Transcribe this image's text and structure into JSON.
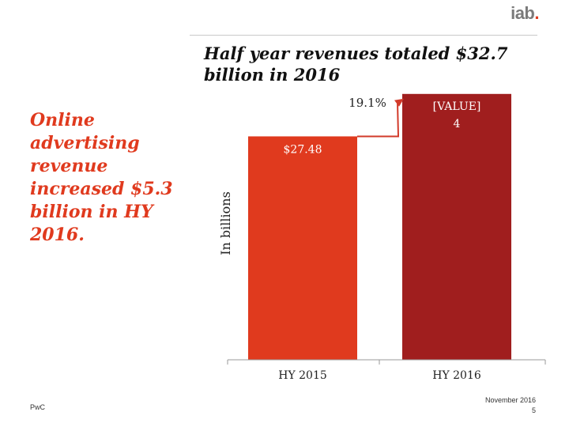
{
  "logo": {
    "text": "iab",
    "dot": "."
  },
  "title": "Half year revenues totaled $32.7 billion in 2016",
  "side_text": "Online advertising revenue increased $5.3 billion in HY 2016.",
  "footer": {
    "left": "PwC",
    "date": "November 2016",
    "page": "5"
  },
  "colors": {
    "bar_2015": "#e03a1e",
    "bar_2016": "#a01e1e",
    "accent": "#e03a1e",
    "arrow": "#d23a2a"
  },
  "chart_data": {
    "type": "bar",
    "title": "Half year revenues totaled $32.7 billion in 2016",
    "ylabel": "In billions",
    "xlabel": "",
    "categories": [
      "HY 2015",
      "HY 2016"
    ],
    "values": [
      27.48,
      32.7
    ],
    "data_labels": [
      "$27.48",
      "[VALUE]\n4"
    ],
    "ylim": [
      0,
      35.5
    ],
    "growth_annotation": "19.1%",
    "grid": false,
    "legend": "none"
  }
}
